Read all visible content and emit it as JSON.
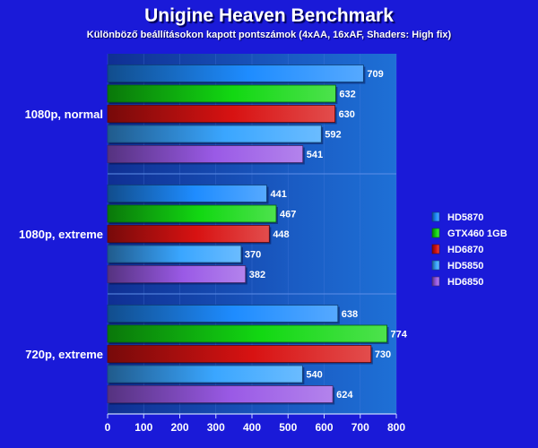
{
  "chart_data": {
    "type": "bar",
    "orientation": "horizontal",
    "title": "Unigine Heaven Benchmark",
    "subtitle": "Különböző beállításokon kapott pontszámok (4xAA, 16xAF, Shaders: High fix)",
    "categories": [
      "1080p, normal",
      "1080p, extreme",
      "720p, extreme"
    ],
    "series": [
      {
        "name": "HD5870",
        "color": "#1e8cff",
        "values": [
          709,
          441,
          638
        ]
      },
      {
        "name": "GTX460 1GB",
        "color": "#12d812",
        "values": [
          632,
          467,
          774
        ]
      },
      {
        "name": "HD6870",
        "color": "#d81212",
        "values": [
          630,
          448,
          730
        ]
      },
      {
        "name": "HD5850",
        "color": "#3aa6ff",
        "values": [
          592,
          370,
          540
        ]
      },
      {
        "name": "HD6850",
        "color": "#9a5ae6",
        "values": [
          541,
          382,
          624
        ]
      }
    ],
    "xlim": [
      0,
      800
    ],
    "xticks": [
      0,
      100,
      200,
      300,
      400,
      500,
      600,
      700,
      800
    ],
    "legend_position": "right",
    "data_labels": true
  }
}
